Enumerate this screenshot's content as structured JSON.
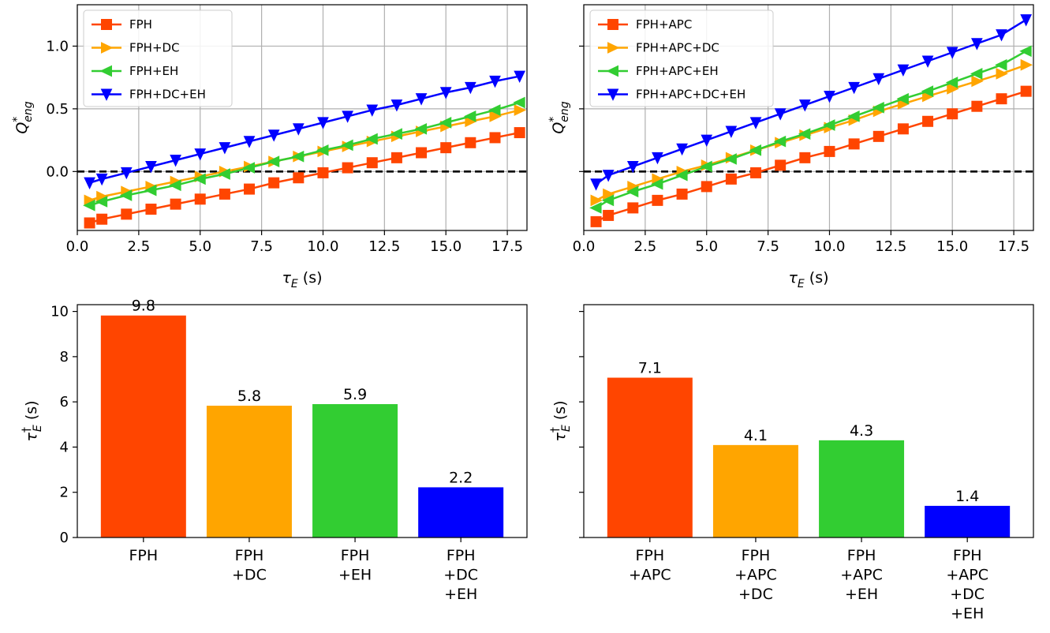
{
  "colors": {
    "red": "#ff4500",
    "orange": "#ffa500",
    "green": "#32cd32",
    "blue": "#0000ff",
    "grid": "#b0b0b0",
    "zero_line": "#000000"
  },
  "chart_data": [
    {
      "type": "line",
      "xlabel": "τ_E (s)",
      "ylabel": "Q*_eng",
      "xlim": [
        0,
        18.3
      ],
      "ylim": [
        -0.47,
        1.33
      ],
      "xticks": [
        "0.0",
        "2.5",
        "5.0",
        "7.5",
        "10.0",
        "12.5",
        "15.0",
        "17.5"
      ],
      "xtick_values": [
        0,
        2.5,
        5,
        7.5,
        10,
        12.5,
        15,
        17.5
      ],
      "yticks": [
        "0.0",
        "0.5",
        "1.0"
      ],
      "ytick_values": [
        0,
        0.5,
        1.0
      ],
      "grid": true,
      "reference_line": {
        "y": 0,
        "style": "dashed"
      },
      "legend_position": "upper-left",
      "x": [
        0.5,
        1,
        2,
        3,
        4,
        5,
        6,
        7,
        8,
        9,
        10,
        11,
        12,
        13,
        14,
        15,
        16,
        17,
        18
      ],
      "series": [
        {
          "name": "FPH",
          "marker": "square",
          "color": "#ff4500",
          "values": [
            -0.41,
            -0.38,
            -0.34,
            -0.3,
            -0.26,
            -0.22,
            -0.18,
            -0.14,
            -0.09,
            -0.05,
            -0.01,
            0.03,
            0.07,
            0.11,
            0.15,
            0.19,
            0.23,
            0.27,
            0.31
          ]
        },
        {
          "name": "FPH+DC",
          "marker": "triangle-right",
          "color": "#ffa500",
          "values": [
            -0.23,
            -0.2,
            -0.16,
            -0.12,
            -0.08,
            -0.04,
            0.0,
            0.04,
            0.08,
            0.12,
            0.16,
            0.2,
            0.24,
            0.28,
            0.32,
            0.36,
            0.4,
            0.44,
            0.49
          ]
        },
        {
          "name": "FPH+EH",
          "marker": "triangle-left",
          "color": "#32cd32",
          "values": [
            -0.27,
            -0.24,
            -0.19,
            -0.15,
            -0.11,
            -0.06,
            -0.02,
            0.03,
            0.08,
            0.12,
            0.17,
            0.21,
            0.26,
            0.3,
            0.34,
            0.39,
            0.44,
            0.49,
            0.55
          ]
        },
        {
          "name": "FPH+DC+EH",
          "marker": "triangle-down",
          "color": "#0000ff",
          "values": [
            -0.09,
            -0.06,
            -0.01,
            0.04,
            0.09,
            0.14,
            0.19,
            0.24,
            0.29,
            0.34,
            0.39,
            0.44,
            0.49,
            0.53,
            0.58,
            0.63,
            0.67,
            0.72,
            0.76
          ]
        }
      ]
    },
    {
      "type": "line",
      "xlabel": "τ_E (s)",
      "ylabel": "Q*_eng",
      "xlim": [
        0,
        18.3
      ],
      "ylim": [
        -0.47,
        1.33
      ],
      "xticks": [
        "0.0",
        "2.5",
        "5.0",
        "7.5",
        "10.0",
        "12.5",
        "15.0",
        "17.5"
      ],
      "xtick_values": [
        0,
        2.5,
        5,
        7.5,
        10,
        12.5,
        15,
        17.5
      ],
      "ytick_values": [
        0,
        0.5,
        1.0
      ],
      "grid": true,
      "reference_line": {
        "y": 0,
        "style": "dashed"
      },
      "legend_position": "upper-left",
      "x": [
        0.5,
        1,
        2,
        3,
        4,
        5,
        6,
        7,
        8,
        9,
        10,
        11,
        12,
        13,
        14,
        15,
        16,
        17,
        18
      ],
      "series": [
        {
          "name": "FPH+APC",
          "marker": "square",
          "color": "#ff4500",
          "values": [
            -0.4,
            -0.35,
            -0.29,
            -0.23,
            -0.18,
            -0.12,
            -0.06,
            -0.01,
            0.05,
            0.11,
            0.16,
            0.22,
            0.28,
            0.34,
            0.4,
            0.46,
            0.52,
            0.58,
            0.64
          ]
        },
        {
          "name": "FPH+APC+DC",
          "marker": "triangle-right",
          "color": "#ffa500",
          "values": [
            -0.23,
            -0.18,
            -0.12,
            -0.06,
            0.0,
            0.05,
            0.11,
            0.17,
            0.23,
            0.29,
            0.35,
            0.41,
            0.48,
            0.54,
            0.6,
            0.66,
            0.72,
            0.78,
            0.85
          ]
        },
        {
          "name": "FPH+APC+EH",
          "marker": "triangle-left",
          "color": "#32cd32",
          "values": [
            -0.29,
            -0.23,
            -0.16,
            -0.1,
            -0.03,
            0.04,
            0.1,
            0.17,
            0.24,
            0.3,
            0.37,
            0.44,
            0.51,
            0.58,
            0.64,
            0.71,
            0.78,
            0.85,
            0.96
          ]
        },
        {
          "name": "FPH+APC+DC+EH",
          "marker": "triangle-down",
          "color": "#0000ff",
          "values": [
            -0.1,
            -0.03,
            0.04,
            0.11,
            0.18,
            0.25,
            0.32,
            0.39,
            0.46,
            0.53,
            0.6,
            0.67,
            0.74,
            0.81,
            0.88,
            0.95,
            1.02,
            1.09,
            1.21
          ]
        }
      ]
    },
    {
      "type": "bar",
      "ylabel": "τ†_E (s)",
      "ylim": [
        0,
        10.3
      ],
      "yticks": [
        "0",
        "2",
        "4",
        "6",
        "8",
        "10"
      ],
      "ytick_values": [
        0,
        2,
        4,
        6,
        8,
        10
      ],
      "grid": false,
      "categories": [
        [
          "FPH"
        ],
        [
          "FPH",
          "+DC"
        ],
        [
          "FPH",
          "+EH"
        ],
        [
          "FPH",
          "+DC",
          "+EH"
        ]
      ],
      "values": [
        9.82,
        5.83,
        5.9,
        2.22
      ],
      "labels": [
        "9.8",
        "5.8",
        "5.9",
        "2.2"
      ],
      "bar_colors": [
        "#ff4500",
        "#ffa500",
        "#32cd32",
        "#0000ff"
      ]
    },
    {
      "type": "bar",
      "ylabel": "τ†_E (s)",
      "ylim": [
        0,
        10.3
      ],
      "ytick_values": [
        0,
        2,
        4,
        6,
        8,
        10
      ],
      "grid": false,
      "categories": [
        [
          "FPH",
          "+APC"
        ],
        [
          "FPH",
          "+APC",
          "+DC"
        ],
        [
          "FPH",
          "+APC",
          "+EH"
        ],
        [
          "FPH",
          "+APC",
          "+DC",
          "+EH"
        ]
      ],
      "values": [
        7.07,
        4.09,
        4.3,
        1.4
      ],
      "labels": [
        "7.1",
        "4.1",
        "4.3",
        "1.4"
      ],
      "bar_colors": [
        "#ff4500",
        "#ffa500",
        "#32cd32",
        "#0000ff"
      ]
    }
  ]
}
